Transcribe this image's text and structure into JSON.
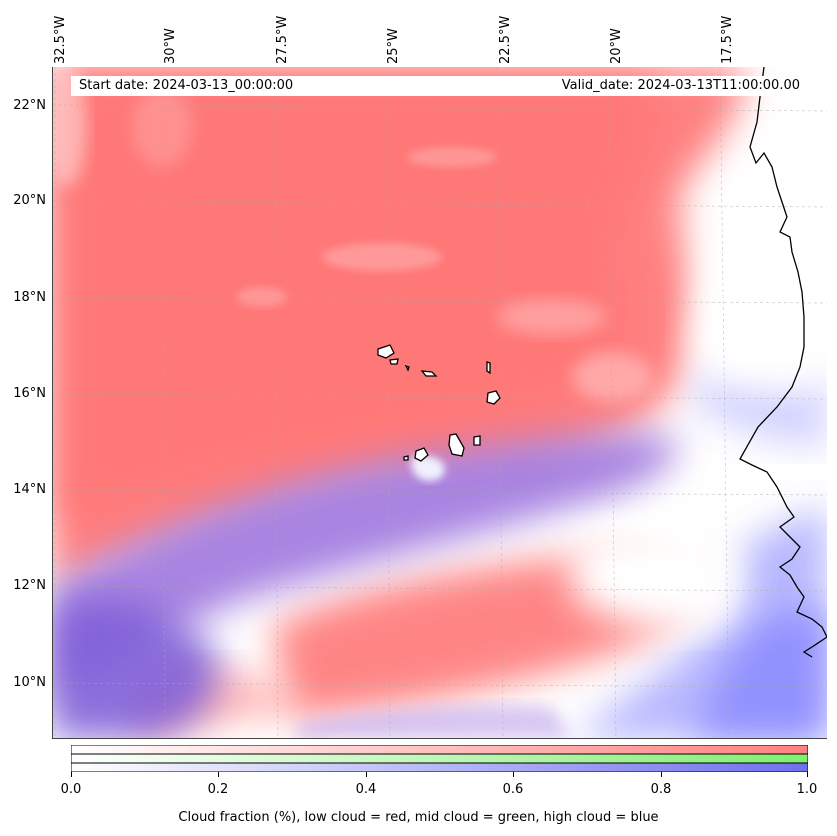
{
  "map": {
    "start_date": "Start date: 2024-03-13_00:00:00",
    "valid_date": "Valid_date: 2024-03-13T11:00:00.00",
    "lon_labels": [
      "32.5°W",
      "30°W",
      "27.5°W",
      "25°W",
      "22.5°W",
      "20°W",
      "17.5°W"
    ],
    "lat_labels": [
      "22°N",
      "20°N",
      "18°N",
      "16°N",
      "14°N",
      "12°N",
      "10°N"
    ]
  },
  "colorbar": {
    "ticks": [
      "0.0",
      "0.2",
      "0.4",
      "0.6",
      "0.8",
      "1.0"
    ],
    "title": "Cloud fraction (%), low cloud = red, mid cloud = green, high cloud = blue",
    "low_color": "#ff8080",
    "mid_color": "#80ee70",
    "high_color": "#7070ee"
  }
}
